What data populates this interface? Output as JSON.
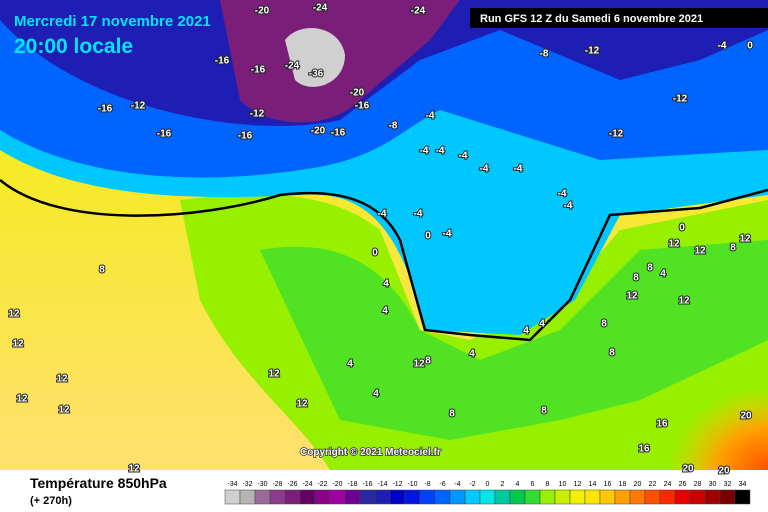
{
  "header": {
    "date": "Mercredi 17 novembre 2021",
    "time": "20:00 locale",
    "run": "Run GFS 12 Z du Samedi 6 novembre 2021"
  },
  "footer": {
    "title": "Température 850hPa",
    "offset": "(+ 270h)",
    "copyright": "Copyright © 2021 Meteociel.fr"
  },
  "legend": {
    "ticks": [
      -34,
      -32,
      -30,
      -28,
      -26,
      -24,
      -22,
      -20,
      -18,
      -16,
      -14,
      -12,
      -10,
      -8,
      -6,
      -4,
      -2,
      0,
      2,
      4,
      6,
      8,
      10,
      12,
      14,
      16,
      18,
      20,
      22,
      24,
      26,
      28,
      30,
      32,
      34
    ],
    "colors": [
      "#d0d0d0",
      "#b4b4b4",
      "#9b6a9b",
      "#8c3c8c",
      "#7a1e7a",
      "#640064",
      "#8c008c",
      "#a000a0",
      "#6e0096",
      "#2828a0",
      "#1e1eb4",
      "#0000c8",
      "#0014e6",
      "#0040ff",
      "#0064ff",
      "#0096ff",
      "#00c8ff",
      "#00e6e6",
      "#00c8a0",
      "#00c850",
      "#32dc32",
      "#96f000",
      "#c8f000",
      "#f0f000",
      "#ffe600",
      "#ffc800",
      "#ffa000",
      "#ff7800",
      "#ff5000",
      "#ff2800",
      "#e60000",
      "#c80000",
      "#a00000",
      "#780000",
      "#000000"
    ]
  },
  "map_labels": [
    "-20",
    "-24",
    "-24",
    "-16",
    "-16",
    "-24",
    "-36",
    "-20",
    "-16",
    "-12",
    "-16",
    "-20",
    "-16",
    "-16",
    "-12",
    "-16",
    "-8",
    "-12",
    "-4",
    "0",
    "-12",
    "-12",
    "-4",
    "-8",
    "-4",
    "-4",
    "-4",
    "-4",
    "-4",
    "-4",
    "-4",
    "-4",
    "-4",
    "-4",
    "0",
    "0",
    "8",
    "12",
    "12",
    "12",
    "12",
    "12",
    "12",
    "12",
    "12",
    "4",
    "4",
    "4",
    "4",
    "12",
    "8",
    "4",
    "4",
    "4",
    "8",
    "8",
    "8",
    "8",
    "8",
    "4",
    "12",
    "12",
    "8",
    "12",
    "12",
    "12",
    "16",
    "16",
    "20",
    "20",
    "20",
    "8",
    "0"
  ]
}
